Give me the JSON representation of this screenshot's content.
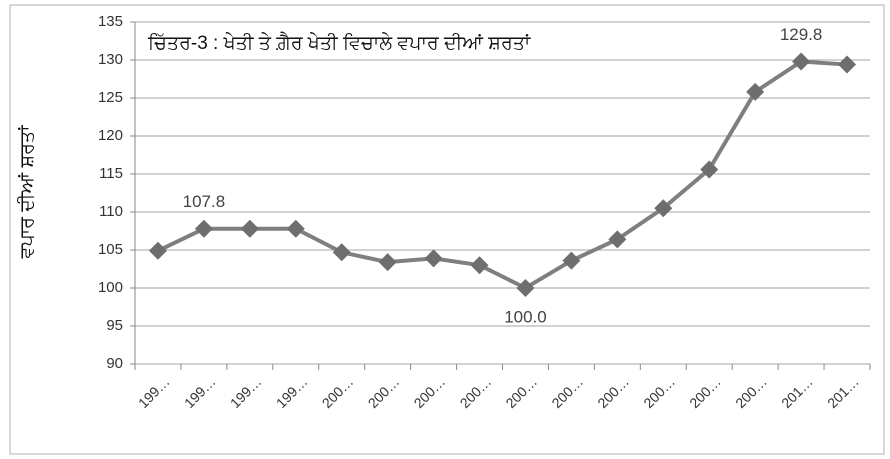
{
  "chart_data": {
    "type": "line",
    "title": "ਚਿੱਤਰ-3 : ਖੇਤੀ ਤੇ ਗ਼ੈਰ ਖੇਤੀ ਵਿਚਾਲੇ ਵਪਾਰ ਦੀਆਂ ਸ਼ਰਤਾਂ",
    "y_label": "ਵਪਾਰ ਦੀਆਂ ਸ਼ਰਤਾਂ",
    "categories": [
      "199…",
      "199…",
      "199…",
      "199…",
      "200…",
      "200…",
      "200…",
      "200…",
      "200…",
      "200…",
      "200…",
      "200…",
      "200…",
      "200…",
      "201…",
      "201…"
    ],
    "values": [
      104.9,
      107.8,
      107.8,
      107.8,
      104.7,
      103.4,
      103.9,
      103.0,
      100.0,
      103.6,
      106.4,
      110.5,
      115.6,
      125.8,
      129.8,
      129.4
    ],
    "value_labels": [
      null,
      "107.8",
      null,
      null,
      null,
      null,
      null,
      null,
      "100.0",
      null,
      null,
      null,
      null,
      null,
      "129.8",
      null
    ],
    "color": "#7f7f7f",
    "ylim": [
      90,
      135
    ],
    "yticks": [
      90,
      95,
      100,
      105,
      110,
      115,
      120,
      125,
      130,
      135
    ],
    "grid": true
  }
}
